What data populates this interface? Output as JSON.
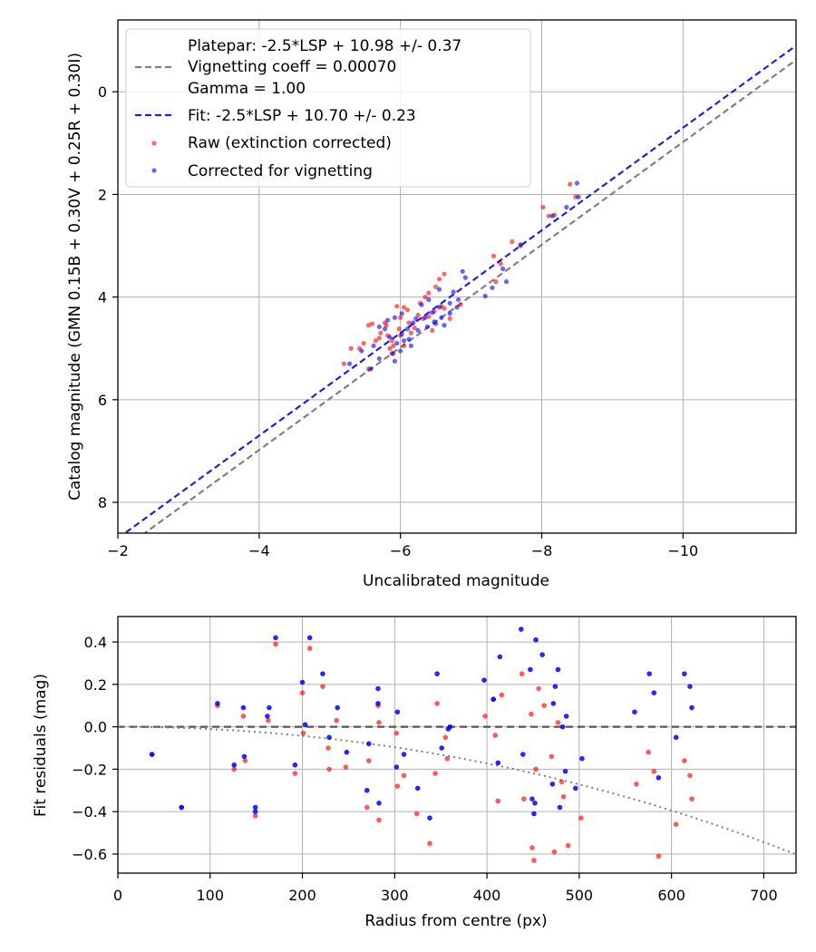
{
  "colors": {
    "raw": "#ff0000",
    "corrected": "#0000ff",
    "platepar_line": "#808080",
    "fit_line": "#2020e0",
    "grid": "#b0b0b0",
    "zero_line": "#555555",
    "vignetting_curve": "#808080"
  },
  "chart_data": [
    {
      "type": "scatter",
      "id": "calibration",
      "xlabel": "Uncalibrated magnitude",
      "ylabel": "Catalog magnitude (GMN 0.15B + 0.30V + 0.25R + 0.30I)",
      "xlim": [
        -2,
        -11.6
      ],
      "ylim": [
        8.6,
        -1.4
      ],
      "xticks": [
        -2,
        -4,
        -6,
        -8,
        -10
      ],
      "xtick_labels": [
        "−2",
        "−4",
        "−6",
        "−8",
        "−10"
      ],
      "yticks": [
        0,
        2,
        4,
        6,
        8
      ],
      "ytick_labels": [
        "0",
        "2",
        "4",
        "6",
        "8"
      ],
      "grid": true,
      "legend": {
        "position": "top-left",
        "platepar_label": "Platepar: -2.5*LSP + 10.98 +/- 0.37",
        "vignetting_label": "Vignetting coeff = 0.00070",
        "gamma_label": "Gamma = 1.00",
        "fit_label": "Fit: -2.5*LSP + 10.70 +/- 0.23",
        "raw_label": "Raw (extinction corrected)",
        "corrected_label": "Corrected for vignetting"
      },
      "lines": [
        {
          "name": "platepar",
          "slope": -2.5,
          "intercept": 10.98,
          "style": "dashed"
        },
        {
          "name": "fit",
          "slope": -2.5,
          "intercept": 10.7,
          "style": "dashed"
        }
      ],
      "series": [
        {
          "name": "Raw (extinction corrected)",
          "points": [
            [
              -8.4,
              1.8
            ],
            [
              -8.48,
              2.05
            ],
            [
              -8.02,
              2.25
            ],
            [
              -8.1,
              2.42
            ],
            [
              -8.18,
              2.4
            ],
            [
              -7.58,
              2.92
            ],
            [
              -7.7,
              3.0
            ],
            [
              -7.32,
              3.2
            ],
            [
              -7.42,
              3.35
            ],
            [
              -7.35,
              3.7
            ],
            [
              -6.62,
              3.55
            ],
            [
              -6.55,
              3.65
            ],
            [
              -6.5,
              3.8
            ],
            [
              -6.4,
              3.92
            ],
            [
              -6.35,
              4.0
            ],
            [
              -6.28,
              4.12
            ],
            [
              -6.05,
              4.2
            ],
            [
              -5.95,
              4.18
            ],
            [
              -6.0,
              4.4
            ],
            [
              -5.78,
              4.5
            ],
            [
              -5.55,
              4.55
            ],
            [
              -5.6,
              4.52
            ],
            [
              -5.72,
              4.7
            ],
            [
              -5.82,
              4.75
            ],
            [
              -5.98,
              4.62
            ],
            [
              -6.12,
              4.5
            ],
            [
              -6.2,
              4.6
            ],
            [
              -6.25,
              4.35
            ],
            [
              -6.32,
              4.42
            ],
            [
              -6.4,
              4.38
            ],
            [
              -6.48,
              4.28
            ],
            [
              -6.58,
              4.18
            ],
            [
              -6.62,
              4.22
            ],
            [
              -5.88,
              4.85
            ],
            [
              -5.9,
              4.95
            ],
            [
              -5.65,
              4.85
            ],
            [
              -5.7,
              4.8
            ],
            [
              -5.48,
              4.9
            ],
            [
              -5.42,
              5.0
            ],
            [
              -5.3,
              5.0
            ],
            [
              -5.2,
              5.3
            ],
            [
              -5.55,
              5.4
            ],
            [
              -5.9,
              5.1
            ],
            [
              -6.05,
              4.95
            ],
            [
              -6.15,
              4.7
            ],
            [
              -6.45,
              4.65
            ],
            [
              -6.7,
              4.42
            ],
            [
              -6.85,
              4.15
            ],
            [
              -6.1,
              4.25
            ],
            [
              -5.8,
              4.55
            ],
            [
              -6.0,
              4.75
            ],
            [
              -5.85,
              5.0
            ]
          ]
        },
        {
          "name": "Corrected for vignetting",
          "points": [
            [
              -8.5,
              1.78
            ],
            [
              -8.52,
              2.05
            ],
            [
              -8.35,
              2.25
            ],
            [
              -8.15,
              2.42
            ],
            [
              -7.7,
              2.98
            ],
            [
              -7.45,
              3.45
            ],
            [
              -7.5,
              3.7
            ],
            [
              -6.88,
              3.5
            ],
            [
              -6.92,
              3.62
            ],
            [
              -6.75,
              3.9
            ],
            [
              -6.82,
              4.05
            ],
            [
              -6.7,
              4.12
            ],
            [
              -6.55,
              4.2
            ],
            [
              -6.45,
              4.3
            ],
            [
              -6.58,
              4.4
            ],
            [
              -6.5,
              4.52
            ],
            [
              -6.38,
              4.58
            ],
            [
              -6.25,
              4.65
            ],
            [
              -6.18,
              4.5
            ],
            [
              -6.1,
              4.62
            ],
            [
              -6.02,
              4.72
            ],
            [
              -6.12,
              4.82
            ],
            [
              -5.95,
              4.9
            ],
            [
              -5.85,
              4.78
            ],
            [
              -5.78,
              4.62
            ],
            [
              -5.7,
              4.58
            ],
            [
              -5.82,
              4.45
            ],
            [
              -5.92,
              4.4
            ],
            [
              -6.02,
              4.32
            ],
            [
              -6.3,
              4.15
            ],
            [
              -6.4,
              4.05
            ],
            [
              -6.55,
              3.85
            ],
            [
              -5.62,
              4.95
            ],
            [
              -5.45,
              5.05
            ],
            [
              -5.28,
              5.3
            ],
            [
              -5.58,
              5.4
            ],
            [
              -5.7,
              5.2
            ],
            [
              -5.92,
              5.25
            ],
            [
              -6.0,
              5.05
            ],
            [
              -5.88,
              5.1
            ],
            [
              -6.35,
              4.4
            ],
            [
              -6.22,
              4.42
            ],
            [
              -6.48,
              4.48
            ],
            [
              -6.62,
              4.55
            ],
            [
              -6.7,
              4.32
            ],
            [
              -6.8,
              4.2
            ],
            [
              -7.2,
              3.98
            ],
            [
              -7.3,
              3.82
            ],
            [
              -6.15,
              4.95
            ],
            [
              -6.05,
              4.85
            ]
          ]
        }
      ]
    },
    {
      "type": "scatter",
      "id": "residuals",
      "xlabel": "Radius from centre (px)",
      "ylabel": "Fit residuals (mag)",
      "xlim": [
        0,
        735
      ],
      "ylim": [
        -0.69,
        0.52
      ],
      "xticks": [
        0,
        100,
        200,
        300,
        400,
        500,
        600,
        700
      ],
      "xtick_labels": [
        "0",
        "100",
        "200",
        "300",
        "400",
        "500",
        "600",
        "700"
      ],
      "yticks": [
        0.4,
        0.2,
        0.0,
        -0.2,
        -0.4,
        -0.6
      ],
      "ytick_labels": [
        "0.4",
        "0.2",
        "0.0",
        "−0.2",
        "−0.4",
        "−0.6"
      ],
      "grid": true,
      "zero_line": 0.0,
      "vignetting_coeff": 0.0007,
      "series": [
        {
          "name": "Raw (extinction corrected)",
          "points": [
            [
              37,
              -0.13
            ],
            [
              69,
              -0.38
            ],
            [
              108,
              0.1
            ],
            [
              126,
              -0.2
            ],
            [
              136,
              0.05
            ],
            [
              138,
              -0.16
            ],
            [
              149,
              -0.42
            ],
            [
              163,
              0.03
            ],
            [
              171,
              0.39
            ],
            [
              192,
              -0.22
            ],
            [
              200,
              0.16
            ],
            [
              201,
              -0.03
            ],
            [
              208,
              0.37
            ],
            [
              222,
              0.19
            ],
            [
              228,
              -0.1
            ],
            [
              229,
              -0.2
            ],
            [
              237,
              0.03
            ],
            [
              247,
              -0.19
            ],
            [
              270,
              -0.38
            ],
            [
              272,
              -0.16
            ],
            [
              282,
              0.1
            ],
            [
              283,
              0.02
            ],
            [
              283,
              -0.44
            ],
            [
              302,
              -0.03
            ],
            [
              303,
              -0.28
            ],
            [
              310,
              -0.23
            ],
            [
              324,
              -0.41
            ],
            [
              338,
              -0.55
            ],
            [
              344,
              -0.22
            ],
            [
              346,
              0.11
            ],
            [
              355,
              -0.05
            ],
            [
              357,
              -0.15
            ],
            [
              398,
              0.05
            ],
            [
              407,
              0.13
            ],
            [
              409,
              -0.04
            ],
            [
              412,
              -0.35
            ],
            [
              416,
              0.15
            ],
            [
              438,
              0.25
            ],
            [
              440,
              -0.34
            ],
            [
              448,
              0.06
            ],
            [
              449,
              -0.57
            ],
            [
              451,
              -0.63
            ],
            [
              453,
              -0.2
            ],
            [
              456,
              0.18
            ],
            [
              462,
              0.1
            ],
            [
              470,
              -0.14
            ],
            [
              473,
              -0.59
            ],
            [
              477,
              0.02
            ],
            [
              481,
              -0.26
            ],
            [
              483,
              -0.33
            ],
            [
              488,
              -0.56
            ],
            [
              502,
              -0.43
            ],
            [
              562,
              -0.27
            ],
            [
              575,
              -0.12
            ],
            [
              581,
              -0.21
            ],
            [
              586,
              -0.61
            ],
            [
              605,
              -0.46
            ],
            [
              614,
              -0.16
            ],
            [
              620,
              -0.23
            ],
            [
              622,
              -0.34
            ]
          ]
        },
        {
          "name": "Corrected for vignetting",
          "points": [
            [
              37,
              -0.13
            ],
            [
              69,
              -0.38
            ],
            [
              108,
              0.11
            ],
            [
              126,
              -0.18
            ],
            [
              136,
              0.09
            ],
            [
              137,
              -0.14
            ],
            [
              149,
              -0.38
            ],
            [
              149,
              -0.4
            ],
            [
              162,
              0.05
            ],
            [
              164,
              0.09
            ],
            [
              171,
              0.42
            ],
            [
              192,
              -0.18
            ],
            [
              200,
              0.21
            ],
            [
              203,
              0.01
            ],
            [
              208,
              0.42
            ],
            [
              222,
              0.25
            ],
            [
              229,
              -0.05
            ],
            [
              238,
              0.09
            ],
            [
              248,
              -0.12
            ],
            [
              270,
              -0.3
            ],
            [
              272,
              -0.08
            ],
            [
              282,
              0.11
            ],
            [
              282,
              0.18
            ],
            [
              283,
              -0.36
            ],
            [
              302,
              -0.19
            ],
            [
              303,
              0.07
            ],
            [
              310,
              -0.13
            ],
            [
              325,
              -0.29
            ],
            [
              338,
              -0.43
            ],
            [
              346,
              0.25
            ],
            [
              351,
              -0.1
            ],
            [
              358,
              -0.01
            ],
            [
              360,
              0.0
            ],
            [
              397,
              0.22
            ],
            [
              407,
              0.13
            ],
            [
              412,
              -0.17
            ],
            [
              414,
              0.33
            ],
            [
              437,
              0.46
            ],
            [
              439,
              -0.13
            ],
            [
              447,
              0.27
            ],
            [
              449,
              -0.34
            ],
            [
              451,
              -0.41
            ],
            [
              452,
              -0.36
            ],
            [
              453,
              0.41
            ],
            [
              460,
              0.34
            ],
            [
              471,
              -0.27
            ],
            [
              472,
              0.11
            ],
            [
              474,
              0.19
            ],
            [
              477,
              0.27
            ],
            [
              479,
              -0.38
            ],
            [
              482,
              0.0
            ],
            [
              485,
              -0.21
            ],
            [
              486,
              0.05
            ],
            [
              496,
              -0.29
            ],
            [
              503,
              -0.15
            ],
            [
              560,
              0.07
            ],
            [
              576,
              0.25
            ],
            [
              581,
              0.16
            ],
            [
              586,
              -0.24
            ],
            [
              605,
              -0.05
            ],
            [
              614,
              0.25
            ],
            [
              620,
              0.19
            ],
            [
              622,
              0.09
            ]
          ]
        }
      ]
    }
  ]
}
